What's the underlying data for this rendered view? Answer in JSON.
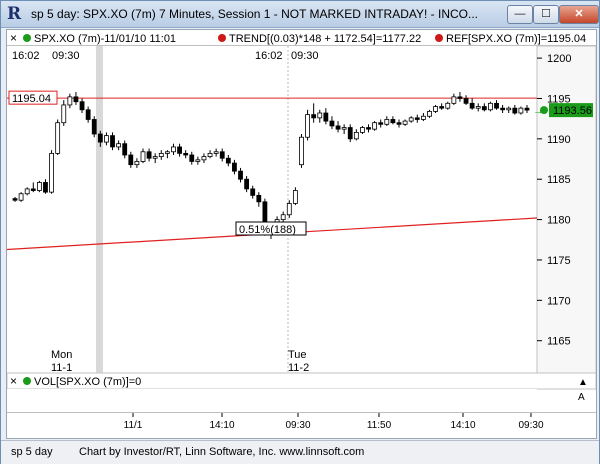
{
  "window": {
    "title": "sp 5 day:  SPX.XO (7m) 7 Minutes, Session 1 - NOT MARKED INTRADAY! - INCO...",
    "minimize_label": "—",
    "maximize_label": "☐",
    "close_label": "✕"
  },
  "legend": {
    "close_box": "×",
    "symbol": "SPX.XO (7m)-11/01/10 11:01",
    "trend": "TREND[(0.03)*148 + 1172.54]=1177.22",
    "ref": "REF[SPX.XO (7m)]=1195.04"
  },
  "time_labels": {
    "left_time": "16:02",
    "left_open": "09:30",
    "mid_time": "16:02",
    "mid_open": "09:30"
  },
  "ref_label": "1195.04",
  "last_price": "1193.56",
  "annotation": "0.51%(188)",
  "day_labels": [
    {
      "day": "Mon",
      "date": "11-1"
    },
    {
      "day": "Tue",
      "date": "11-2"
    }
  ],
  "volume_panel": {
    "close_box": "×",
    "label": "VOL[SPX.XO (7m)]=0",
    "up_arrow": "▲",
    "down_arrow": "A"
  },
  "x_axis_labels": [
    "11/1",
    "14:10",
    "09:30",
    "11:50",
    "14:10",
    "09:30"
  ],
  "status": {
    "left": "sp 5 day",
    "credit": "Chart by Investor/RT, Linn Software, Inc.  www.linnsoft.com"
  },
  "colors": {
    "ref_line": "#e02020",
    "trend_line": "#e02020",
    "last_price_bg": "#1a9b1a",
    "up_candle": "#ffffff",
    "down_candle": "#000000"
  },
  "chart_data": {
    "type": "candlestick",
    "y_axis_ticks": [
      1200,
      1195,
      1190,
      1185,
      1180,
      1175,
      1170,
      1165
    ],
    "ylim": [
      1161,
      1201.5
    ],
    "reference_level": 1195.04,
    "last_price": 1193.56,
    "trend_start": 1176.3,
    "trend_end": 1180.2,
    "candles": [
      [
        1182.6,
        1182.8,
        1182.2,
        1182.4
      ],
      [
        1182.4,
        1183.4,
        1182.2,
        1183.2
      ],
      [
        1183.2,
        1184.0,
        1183.0,
        1183.8
      ],
      [
        1183.8,
        1184.6,
        1183.4,
        1183.6
      ],
      [
        1183.6,
        1184.8,
        1183.4,
        1184.6
      ],
      [
        1184.6,
        1185.0,
        1183.2,
        1183.4
      ],
      [
        1183.4,
        1188.6,
        1183.2,
        1188.2
      ],
      [
        1188.2,
        1192.4,
        1188.0,
        1192.0
      ],
      [
        1192.0,
        1194.8,
        1191.6,
        1194.2
      ],
      [
        1194.2,
        1195.6,
        1193.8,
        1195.2
      ],
      [
        1195.2,
        1195.8,
        1194.2,
        1194.6
      ],
      [
        1194.6,
        1195.0,
        1193.2,
        1193.6
      ],
      [
        1193.6,
        1194.0,
        1192.0,
        1192.4
      ],
      [
        1192.4,
        1192.8,
        1190.2,
        1190.6
      ],
      [
        1190.6,
        1191.0,
        1189.0,
        1189.6
      ],
      [
        1189.6,
        1190.8,
        1189.2,
        1190.4
      ],
      [
        1190.4,
        1190.8,
        1188.6,
        1189.0
      ],
      [
        1189.0,
        1189.8,
        1188.6,
        1189.4
      ],
      [
        1189.4,
        1189.8,
        1187.6,
        1188.0
      ],
      [
        1188.0,
        1188.4,
        1186.4,
        1186.8
      ],
      [
        1186.8,
        1187.6,
        1186.4,
        1187.2
      ],
      [
        1187.2,
        1188.8,
        1187.0,
        1188.4
      ],
      [
        1188.4,
        1188.8,
        1187.2,
        1187.6
      ],
      [
        1187.6,
        1188.2,
        1187.0,
        1187.8
      ],
      [
        1187.8,
        1188.6,
        1187.4,
        1188.2
      ],
      [
        1188.2,
        1188.6,
        1187.6,
        1188.4
      ],
      [
        1188.4,
        1189.4,
        1188.0,
        1189.0
      ],
      [
        1189.0,
        1189.4,
        1187.8,
        1188.2
      ],
      [
        1188.2,
        1188.6,
        1187.6,
        1188.0
      ],
      [
        1188.0,
        1188.4,
        1186.8,
        1187.2
      ],
      [
        1187.2,
        1187.8,
        1186.8,
        1187.4
      ],
      [
        1187.4,
        1188.2,
        1187.0,
        1187.8
      ],
      [
        1187.8,
        1188.6,
        1187.6,
        1188.2
      ],
      [
        1188.2,
        1188.8,
        1187.8,
        1188.4
      ],
      [
        1188.4,
        1188.8,
        1187.2,
        1187.6
      ],
      [
        1187.6,
        1188.0,
        1186.6,
        1187.0
      ],
      [
        1187.0,
        1187.4,
        1185.6,
        1186.0
      ],
      [
        1186.0,
        1186.4,
        1184.6,
        1185.0
      ],
      [
        1185.0,
        1185.4,
        1183.4,
        1183.8
      ],
      [
        1183.8,
        1184.2,
        1182.6,
        1183.0
      ],
      [
        1183.0,
        1183.4,
        1181.6,
        1182.2
      ],
      [
        1182.2,
        1182.6,
        1178.0,
        1178.8
      ],
      [
        1178.8,
        1179.6,
        1177.6,
        1179.2
      ],
      [
        1179.2,
        1180.4,
        1178.8,
        1180.0
      ],
      [
        1180.0,
        1181.0,
        1179.6,
        1180.6
      ],
      [
        1180.6,
        1182.4,
        1180.2,
        1182.0
      ],
      [
        1182.0,
        1184.0,
        1181.8,
        1183.6
      ],
      [
        1186.8,
        1190.6,
        1186.4,
        1190.2
      ],
      [
        1190.2,
        1193.6,
        1189.8,
        1193.0
      ],
      [
        1193.0,
        1194.4,
        1192.0,
        1192.6
      ],
      [
        1192.6,
        1193.6,
        1192.0,
        1193.2
      ],
      [
        1193.2,
        1193.8,
        1191.8,
        1192.2
      ],
      [
        1192.2,
        1192.8,
        1191.2,
        1191.6
      ],
      [
        1191.6,
        1192.2,
        1190.8,
        1191.2
      ],
      [
        1191.2,
        1191.8,
        1190.6,
        1191.4
      ],
      [
        1191.4,
        1191.8,
        1189.6,
        1190.0
      ],
      [
        1190.0,
        1191.2,
        1189.8,
        1190.8
      ],
      [
        1190.8,
        1191.6,
        1190.6,
        1191.4
      ],
      [
        1191.4,
        1191.8,
        1190.8,
        1191.2
      ],
      [
        1191.2,
        1192.2,
        1191.0,
        1192.0
      ],
      [
        1192.0,
        1192.4,
        1191.4,
        1191.8
      ],
      [
        1191.8,
        1192.8,
        1191.6,
        1192.4
      ],
      [
        1192.4,
        1192.8,
        1191.8,
        1192.0
      ],
      [
        1192.0,
        1192.4,
        1191.4,
        1191.8
      ],
      [
        1191.8,
        1192.4,
        1191.6,
        1192.2
      ],
      [
        1192.2,
        1192.8,
        1192.0,
        1192.6
      ],
      [
        1192.6,
        1193.0,
        1192.0,
        1192.4
      ],
      [
        1192.4,
        1193.2,
        1192.2,
        1192.8
      ],
      [
        1192.8,
        1193.6,
        1192.6,
        1193.4
      ],
      [
        1193.4,
        1194.2,
        1193.2,
        1194.0
      ],
      [
        1194.0,
        1194.4,
        1193.6,
        1193.8
      ],
      [
        1193.8,
        1194.6,
        1193.6,
        1194.4
      ],
      [
        1194.4,
        1195.6,
        1194.2,
        1195.2
      ],
      [
        1195.2,
        1195.8,
        1194.6,
        1195.0
      ],
      [
        1195.0,
        1195.4,
        1194.2,
        1194.4
      ],
      [
        1194.4,
        1195.0,
        1193.6,
        1193.8
      ],
      [
        1193.8,
        1194.4,
        1193.4,
        1194.0
      ],
      [
        1194.0,
        1194.4,
        1193.4,
        1193.6
      ],
      [
        1193.6,
        1194.6,
        1193.4,
        1194.4
      ],
      [
        1194.4,
        1194.8,
        1193.6,
        1193.8
      ],
      [
        1193.8,
        1194.2,
        1193.2,
        1193.6
      ],
      [
        1193.6,
        1194.0,
        1193.2,
        1193.8
      ],
      [
        1193.8,
        1194.2,
        1193.0,
        1193.2
      ],
      [
        1193.2,
        1194.0,
        1193.0,
        1193.8
      ],
      [
        1193.8,
        1194.2,
        1193.2,
        1193.56
      ]
    ]
  }
}
